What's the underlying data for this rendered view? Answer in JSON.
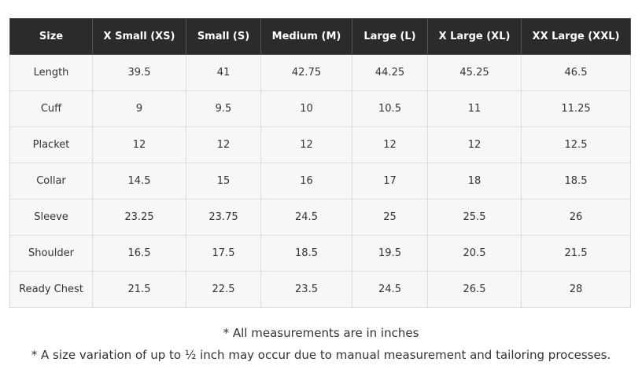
{
  "table": {
    "header": [
      "Size",
      "X Small (XS)",
      "Small (S)",
      "Medium (M)",
      "Large (L)",
      "X Large (XL)",
      "XX Large (XXL)"
    ],
    "rows": [
      [
        "Length",
        "39.5",
        "41",
        "42.75",
        "44.25",
        "45.25",
        "46.5"
      ],
      [
        "Cuff",
        "9",
        "9.5",
        "10",
        "10.5",
        "11",
        "11.25"
      ],
      [
        "Placket",
        "12",
        "12",
        "12",
        "12",
        "12",
        "12.5"
      ],
      [
        "Collar",
        "14.5",
        "15",
        "16",
        "17",
        "18",
        "18.5"
      ],
      [
        "Sleeve",
        "23.25",
        "23.75",
        "24.5",
        "25",
        "25.5",
        "26"
      ],
      [
        "Shoulder",
        "16.5",
        "17.5",
        "18.5",
        "19.5",
        "20.5",
        "21.5"
      ],
      [
        "Ready Chest",
        "21.5",
        "22.5",
        "23.5",
        "24.5",
        "26.5",
        "28"
      ]
    ]
  },
  "notes": [
    "* All measurements are in inches",
    "* A size variation of up to ½ inch may occur due to manual measurement and tailoring processes."
  ]
}
